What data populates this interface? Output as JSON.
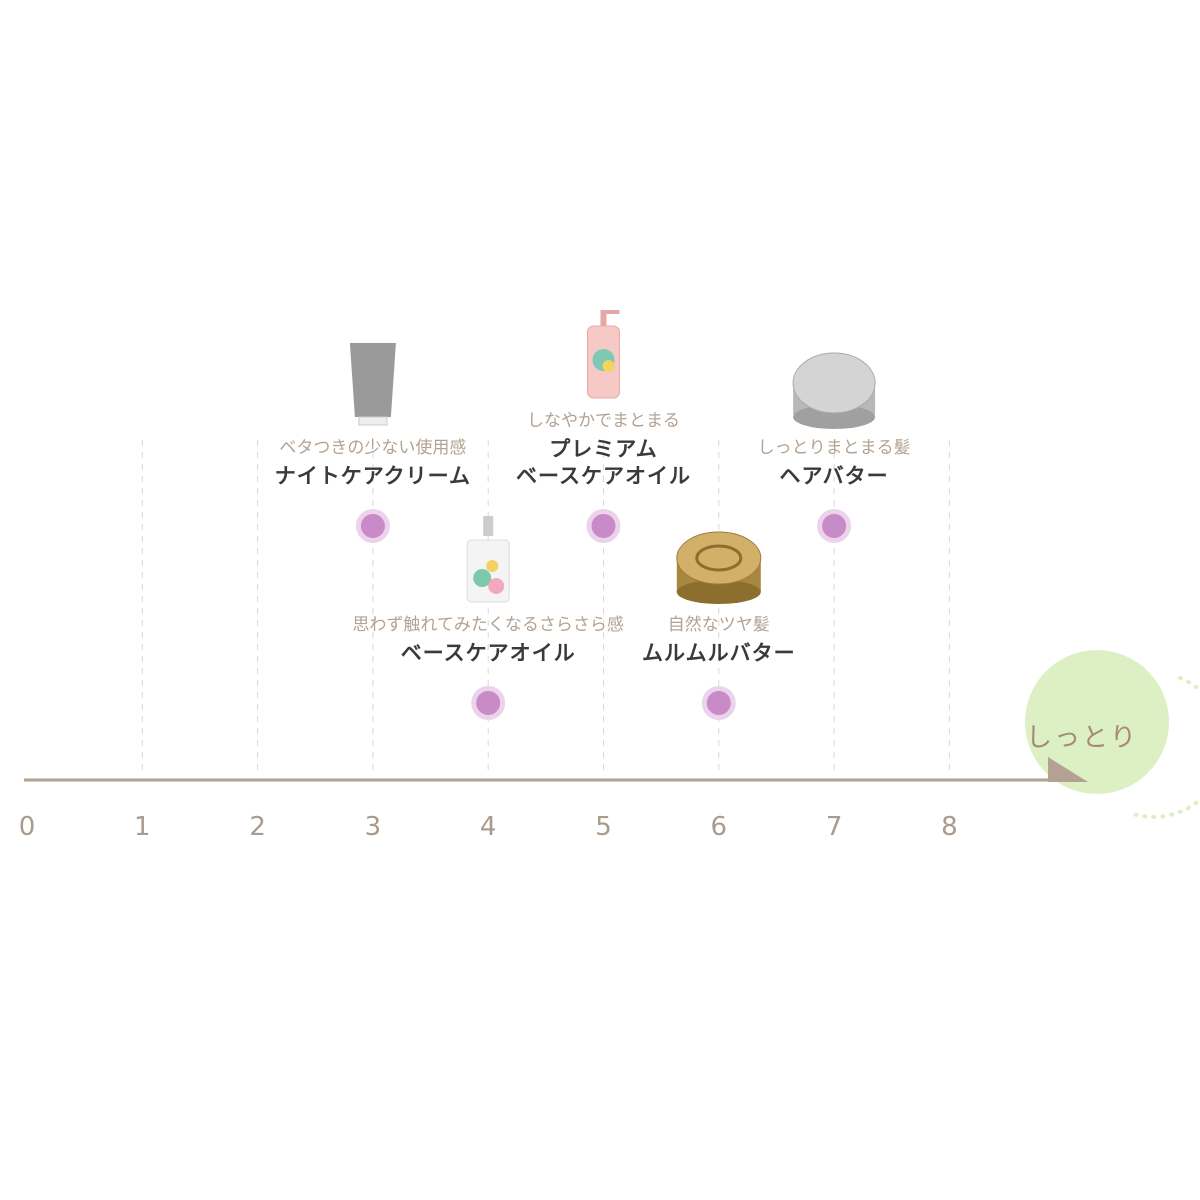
{
  "chart_data": {
    "type": "scatter",
    "xlim": [
      0,
      8
    ],
    "x_ticks": [
      "0",
      "1",
      "2",
      "3",
      "4",
      "5",
      "6",
      "7",
      "8"
    ],
    "axis_end_label": "しっとり",
    "grid": true,
    "point_color": "#c98ac8",
    "accent_color": "#dcf0c4",
    "axis_color": "#b3a292",
    "points": [
      {
        "x": 3,
        "row": "upper",
        "subtitle": "ベタつきの少ない使用感",
        "name": [
          "ナイトケアクリーム"
        ],
        "product_icon": "tube-icon"
      },
      {
        "x": 5,
        "row": "upper",
        "subtitle": "しなやかでまとまる",
        "name": [
          "プレミアム",
          "ベースケアオイル"
        ],
        "product_icon": "pump-bottle-icon"
      },
      {
        "x": 7,
        "row": "upper",
        "subtitle": "しっとりまとまる髪",
        "name": [
          "ヘアバター"
        ],
        "product_icon": "silver-tin-icon"
      },
      {
        "x": 4,
        "row": "lower",
        "subtitle": "思わず触れてみたくなるさらさら感",
        "name": [
          "ベースケアオイル"
        ],
        "product_icon": "oil-bottle-icon"
      },
      {
        "x": 6,
        "row": "lower",
        "subtitle": "自然なツヤ髪",
        "name": [
          "ムルムルバター"
        ],
        "product_icon": "gold-tin-icon"
      }
    ]
  }
}
